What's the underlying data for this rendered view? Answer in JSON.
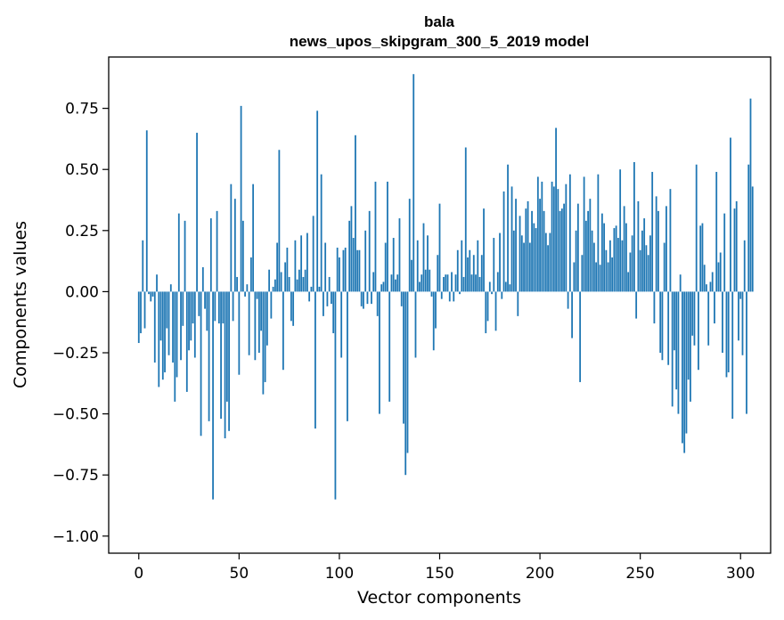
{
  "chart_data": {
    "type": "bar",
    "title_line1": "bala",
    "title_line2": "news_upos_skipgram_300_5_2019 model",
    "xlabel": "Vector components",
    "ylabel": "Components values",
    "xlim": [
      -15,
      315
    ],
    "ylim": [
      -1.07,
      0.96
    ],
    "xticks": [
      0,
      50,
      100,
      150,
      200,
      250,
      300
    ],
    "xtick_labels": [
      "0",
      "50",
      "100",
      "150",
      "200",
      "250",
      "300"
    ],
    "yticks": [
      0.75,
      0.5,
      0.25,
      0.0,
      -0.25,
      -0.5,
      -0.75,
      -1.0
    ],
    "ytick_labels": [
      "0.75",
      "0.50",
      "0.25",
      "0.00",
      "−0.25",
      "−0.50",
      "−0.75",
      "−1.00"
    ],
    "bar_color": "#1f77b4",
    "series": [
      {
        "name": "bala",
        "values": [
          -0.21,
          -0.17,
          0.21,
          -0.15,
          0.66,
          -0.01,
          -0.04,
          -0.02,
          -0.29,
          0.07,
          -0.39,
          -0.2,
          -0.36,
          -0.33,
          -0.15,
          -0.26,
          0.03,
          -0.29,
          -0.45,
          -0.35,
          0.32,
          -0.28,
          -0.14,
          0.29,
          -0.41,
          -0.24,
          -0.2,
          -0.13,
          -0.27,
          0.65,
          -0.1,
          -0.59,
          0.1,
          -0.07,
          -0.16,
          -0.53,
          0.3,
          -0.85,
          -0.12,
          0.33,
          -0.13,
          -0.52,
          -0.13,
          -0.6,
          -0.45,
          -0.57,
          0.44,
          -0.12,
          0.38,
          0.06,
          -0.34,
          0.76,
          0.29,
          -0.02,
          0.03,
          -0.26,
          0.14,
          0.44,
          -0.28,
          -0.03,
          -0.25,
          -0.16,
          -0.42,
          -0.37,
          -0.22,
          0.09,
          -0.11,
          0.02,
          0.05,
          0.2,
          0.58,
          0.08,
          -0.32,
          0.12,
          0.18,
          0.06,
          -0.12,
          -0.14,
          0.21,
          0.05,
          0.09,
          0.23,
          0.06,
          0.09,
          0.24,
          -0.04,
          0.02,
          0.31,
          -0.56,
          0.74,
          0.02,
          0.48,
          -0.1,
          0.2,
          -0.06,
          0.06,
          -0.05,
          -0.17,
          -0.85,
          0.18,
          0.14,
          -0.27,
          0.17,
          0.18,
          -0.53,
          0.29,
          0.35,
          0.22,
          0.64,
          0.17,
          0.17,
          -0.06,
          -0.07,
          0.25,
          -0.05,
          0.33,
          -0.05,
          0.08,
          0.45,
          -0.1,
          -0.5,
          0.03,
          0.04,
          0.2,
          0.45,
          -0.45,
          0.07,
          0.22,
          0.05,
          0.07,
          0.3,
          -0.06,
          -0.54,
          -0.75,
          -0.66,
          0.38,
          0.13,
          0.89,
          -0.27,
          0.21,
          0.04,
          0.07,
          0.28,
          0.09,
          0.23,
          0.09,
          -0.02,
          -0.24,
          -0.15,
          0.15,
          0.36,
          -0.03,
          0.06,
          0.07,
          0.07,
          -0.04,
          0.08,
          -0.04,
          0.07,
          0.17,
          -0.01,
          0.21,
          0.06,
          0.59,
          0.14,
          0.17,
          0.07,
          0.15,
          0.07,
          0.21,
          0.06,
          0.15,
          0.34,
          -0.17,
          -0.12,
          0.04,
          -0.01,
          0.22,
          -0.16,
          0.08,
          0.24,
          -0.03,
          0.41,
          0.04,
          0.52,
          0.03,
          0.43,
          0.25,
          0.38,
          -0.1,
          0.31,
          0.23,
          0.2,
          0.34,
          0.37,
          0.2,
          0.33,
          0.28,
          0.26,
          0.47,
          0.38,
          0.45,
          0.33,
          0.24,
          0.19,
          0.24,
          0.45,
          0.43,
          0.67,
          0.42,
          0.33,
          0.34,
          0.36,
          0.44,
          -0.07,
          0.48,
          -0.19,
          0.12,
          0.25,
          0.36,
          -0.37,
          0.15,
          0.47,
          0.29,
          0.33,
          0.38,
          0.25,
          0.2,
          0.12,
          0.48,
          0.11,
          0.32,
          0.28,
          0.17,
          0.12,
          0.21,
          0.14,
          0.26,
          0.27,
          0.22,
          0.5,
          0.21,
          0.35,
          0.28,
          0.08,
          0.16,
          0.23,
          0.53,
          -0.11,
          0.37,
          0.17,
          0.25,
          0.3,
          0.19,
          0.15,
          0.23,
          0.49,
          -0.13,
          0.39,
          0.33,
          -0.25,
          -0.28,
          0.2,
          0.35,
          -0.3,
          0.42,
          -0.47,
          -0.24,
          -0.4,
          -0.5,
          0.07,
          -0.62,
          -0.66,
          -0.58,
          -0.36,
          -0.45,
          -0.18,
          -0.22,
          0.52,
          -0.32,
          0.27,
          0.28,
          0.11,
          0.03,
          -0.22,
          0.04,
          0.08,
          -0.13,
          0.49,
          0.12,
          0.16,
          -0.25,
          0.32,
          -0.35,
          -0.33,
          0.63,
          -0.52,
          0.34,
          0.37,
          -0.2,
          -0.03,
          -0.26,
          0.21,
          -0.5,
          0.52,
          0.79,
          0.43
        ]
      }
    ]
  }
}
